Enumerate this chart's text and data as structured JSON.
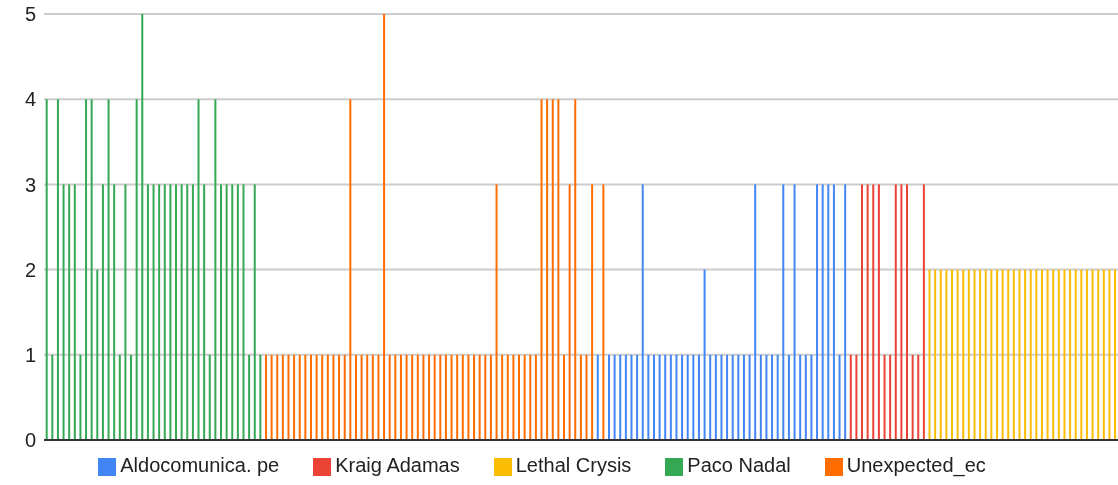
{
  "chart_data": {
    "type": "bar",
    "stacked": true,
    "grid": "y",
    "legend": "bottom",
    "ylim": [
      0,
      5
    ],
    "yticks": [
      0,
      1,
      2,
      3,
      4,
      5
    ],
    "categories": [
      null,
      null,
      null,
      null,
      null,
      null,
      null,
      null,
      null,
      null,
      null,
      null,
      null,
      null,
      null,
      null,
      null,
      null,
      null,
      null,
      null,
      null,
      null,
      null,
      null,
      null,
      null,
      null,
      null,
      null,
      null,
      null,
      null,
      null,
      null,
      null,
      null,
      null,
      null,
      null,
      null,
      null,
      null,
      null,
      null,
      null,
      null,
      null,
      null,
      null,
      null,
      null,
      null,
      null,
      null,
      null,
      null,
      null,
      null,
      null,
      null,
      null,
      null,
      null,
      null,
      null,
      null,
      null,
      null,
      null,
      null,
      null,
      null,
      null,
      null,
      null,
      null,
      null,
      null,
      null,
      null,
      null,
      null,
      null,
      null,
      null,
      null,
      null,
      null,
      null,
      null,
      null,
      null,
      null,
      null,
      null,
      null,
      null,
      null,
      null,
      null,
      null,
      null,
      null,
      null,
      null,
      null,
      null,
      null,
      null,
      null,
      null,
      null,
      null,
      null,
      null,
      null,
      null,
      null,
      null,
      null,
      null,
      null,
      null,
      null,
      null,
      null,
      null,
      null,
      null,
      null,
      null,
      null,
      null,
      null,
      null,
      null,
      null,
      null,
      null,
      null,
      null,
      null,
      null,
      null,
      null,
      null,
      null,
      null,
      null,
      null,
      null,
      null,
      null,
      null,
      null,
      null,
      null,
      null,
      null,
      null,
      null,
      null,
      null,
      null,
      null,
      null,
      null,
      null,
      null,
      null,
      null,
      null,
      null,
      null,
      null,
      null,
      null,
      null,
      null,
      null,
      null,
      null,
      null,
      null,
      null,
      null,
      null,
      null,
      null,
      null
    ],
    "series": [
      {
        "name": "Aldocomunica. pe",
        "color": "#4285f4",
        "values": [
          null,
          null,
          null,
          null,
          null,
          null,
          null,
          null,
          null,
          null,
          null,
          null,
          null,
          null,
          null,
          null,
          null,
          null,
          null,
          null,
          null,
          null,
          null,
          null,
          null,
          null,
          null,
          null,
          null,
          null,
          null,
          null,
          null,
          null,
          null,
          null,
          null,
          null,
          null,
          null,
          null,
          null,
          null,
          null,
          null,
          null,
          null,
          null,
          null,
          null,
          null,
          null,
          null,
          null,
          null,
          null,
          null,
          null,
          null,
          null,
          null,
          null,
          null,
          null,
          null,
          null,
          null,
          null,
          null,
          null,
          null,
          null,
          null,
          null,
          null,
          null,
          null,
          null,
          null,
          null,
          null,
          null,
          null,
          null,
          null,
          null,
          null,
          null,
          null,
          null,
          null,
          null,
          null,
          null,
          null,
          null,
          null,
          null,
          1,
          null,
          1,
          1,
          1,
          1,
          1,
          1,
          3,
          1,
          1,
          1,
          1,
          1,
          1,
          1,
          1,
          1,
          1,
          2,
          1,
          1,
          1,
          1,
          1,
          1,
          1,
          1,
          3,
          1,
          1,
          1,
          1,
          3,
          1,
          3,
          1,
          1,
          1,
          3,
          3,
          3,
          3,
          1,
          3,
          null,
          null,
          null,
          null,
          null,
          null,
          null,
          null,
          null,
          null,
          null,
          null,
          null,
          null,
          null,
          null,
          null,
          null,
          null,
          null,
          null,
          null,
          null,
          null,
          null,
          null,
          null,
          null,
          null,
          null,
          null,
          null,
          null,
          null,
          null,
          null,
          null,
          null,
          null,
          null,
          null,
          null,
          null,
          null,
          null,
          null,
          null,
          null
        ]
      },
      {
        "name": "Kraig Adamas",
        "color": "#ea4335",
        "values": [
          null,
          null,
          null,
          null,
          null,
          null,
          null,
          null,
          null,
          null,
          null,
          null,
          null,
          null,
          null,
          null,
          null,
          null,
          null,
          null,
          null,
          null,
          null,
          null,
          null,
          null,
          null,
          null,
          null,
          null,
          null,
          null,
          null,
          null,
          null,
          null,
          null,
          null,
          null,
          null,
          null,
          null,
          null,
          null,
          null,
          null,
          null,
          null,
          null,
          null,
          null,
          null,
          null,
          null,
          null,
          null,
          null,
          null,
          null,
          null,
          null,
          null,
          null,
          null,
          null,
          null,
          null,
          null,
          null,
          null,
          null,
          null,
          null,
          null,
          null,
          null,
          null,
          null,
          null,
          null,
          null,
          null,
          null,
          null,
          null,
          null,
          null,
          null,
          null,
          null,
          null,
          null,
          null,
          null,
          null,
          null,
          null,
          null,
          null,
          null,
          null,
          null,
          null,
          null,
          null,
          null,
          null,
          null,
          null,
          null,
          null,
          null,
          null,
          null,
          null,
          null,
          null,
          null,
          null,
          null,
          null,
          null,
          null,
          null,
          null,
          null,
          null,
          null,
          null,
          null,
          null,
          null,
          null,
          null,
          null,
          null,
          null,
          null,
          null,
          null,
          null,
          null,
          null,
          1,
          1,
          3,
          3,
          3,
          3,
          1,
          1,
          3,
          3,
          3,
          1,
          1,
          3,
          null,
          null,
          null,
          null,
          null,
          null,
          null,
          null,
          null,
          null,
          null,
          null,
          null,
          null,
          null,
          null,
          null,
          null,
          null,
          null,
          null,
          null,
          null,
          null,
          null,
          null,
          null,
          null,
          null,
          null,
          null,
          null,
          null,
          null
        ]
      },
      {
        "name": "Lethal Crysis",
        "color": "#fbbc04",
        "values": [
          null,
          null,
          null,
          null,
          null,
          null,
          null,
          null,
          null,
          null,
          null,
          null,
          null,
          null,
          null,
          null,
          null,
          null,
          null,
          null,
          null,
          null,
          null,
          null,
          null,
          null,
          null,
          null,
          null,
          null,
          null,
          null,
          null,
          null,
          null,
          null,
          null,
          null,
          null,
          null,
          null,
          null,
          null,
          null,
          null,
          null,
          null,
          null,
          null,
          null,
          null,
          null,
          null,
          null,
          null,
          null,
          null,
          null,
          null,
          null,
          null,
          null,
          null,
          null,
          null,
          null,
          null,
          null,
          null,
          null,
          null,
          null,
          null,
          null,
          null,
          null,
          null,
          null,
          null,
          null,
          null,
          null,
          null,
          null,
          null,
          null,
          null,
          null,
          null,
          null,
          null,
          null,
          null,
          null,
          null,
          null,
          null,
          null,
          null,
          null,
          null,
          null,
          null,
          null,
          null,
          null,
          null,
          null,
          null,
          null,
          null,
          null,
          null,
          null,
          null,
          null,
          null,
          null,
          null,
          null,
          null,
          null,
          null,
          null,
          null,
          null,
          null,
          null,
          null,
          null,
          null,
          null,
          null,
          null,
          null,
          null,
          null,
          null,
          null,
          null,
          null,
          null,
          null,
          null,
          null,
          null,
          null,
          null,
          null,
          null,
          null,
          null,
          null,
          null,
          null,
          null,
          null,
          2,
          2,
          2,
          2,
          2,
          2,
          2,
          2,
          2,
          2,
          2,
          2,
          2,
          2,
          2,
          2,
          2,
          2,
          2,
          2,
          2,
          2,
          2,
          2,
          2,
          2,
          2,
          2,
          2,
          2,
          2,
          2,
          2,
          2
        ]
      },
      {
        "name": "Paco Nadal",
        "color": "#34a853",
        "values": [
          4,
          1,
          4,
          3,
          3,
          3,
          1,
          4,
          4,
          2,
          3,
          4,
          3,
          1,
          3,
          1,
          4,
          5,
          3,
          3,
          3,
          3,
          3,
          3,
          3,
          3,
          3,
          4,
          3,
          1,
          4,
          3,
          3,
          3,
          3,
          3,
          1,
          3,
          1,
          null,
          null,
          null,
          null,
          null,
          null,
          null,
          null,
          null,
          null,
          null,
          null,
          null,
          null,
          null,
          null,
          null,
          null,
          null,
          null,
          null,
          null,
          null,
          null,
          null,
          null,
          null,
          null,
          null,
          null,
          null,
          null,
          null,
          null,
          null,
          null,
          null,
          null,
          null,
          null,
          null,
          null,
          null,
          null,
          null,
          null,
          null,
          null,
          null,
          null,
          null,
          null,
          null,
          null,
          null,
          null,
          null,
          null,
          null,
          null,
          null,
          null,
          null,
          null,
          null,
          null,
          null,
          null,
          null,
          null,
          null,
          null,
          null,
          null,
          null,
          null,
          null,
          null,
          null,
          null,
          null,
          null,
          null,
          null,
          null,
          null,
          null,
          null,
          null,
          null,
          null,
          null,
          null,
          null,
          null,
          null,
          null,
          null,
          null,
          null,
          null,
          null,
          null,
          null,
          null,
          null,
          null,
          null,
          null,
          null,
          null,
          null,
          null,
          null,
          null,
          null,
          null,
          null,
          null,
          null,
          null,
          null,
          null,
          null,
          null,
          null,
          null,
          null,
          null,
          null,
          null,
          null,
          null,
          null,
          null,
          null,
          null,
          null,
          null,
          null,
          null,
          null,
          null,
          null,
          null,
          null,
          null,
          null,
          null,
          null,
          null,
          null
        ]
      },
      {
        "name": "Unexpected_ec",
        "color": "#ff6d01",
        "values": [
          null,
          null,
          null,
          null,
          null,
          null,
          null,
          null,
          null,
          null,
          null,
          null,
          null,
          null,
          null,
          null,
          null,
          null,
          null,
          null,
          null,
          null,
          null,
          null,
          null,
          null,
          null,
          null,
          null,
          null,
          null,
          null,
          null,
          null,
          null,
          null,
          null,
          null,
          null,
          1,
          1,
          1,
          1,
          1,
          1,
          1,
          1,
          1,
          1,
          1,
          1,
          1,
          1,
          1,
          4,
          1,
          1,
          1,
          1,
          1,
          5,
          1,
          1,
          1,
          1,
          1,
          1,
          1,
          1,
          1,
          1,
          1,
          1,
          1,
          1,
          1,
          1,
          1,
          1,
          1,
          3,
          1,
          1,
          1,
          1,
          1,
          1,
          1,
          4,
          4,
          4,
          4,
          1,
          3,
          4,
          1,
          1,
          3,
          null,
          3,
          null,
          null,
          null,
          null,
          null,
          null,
          null,
          null,
          null,
          null,
          null,
          null,
          null,
          null,
          null,
          null,
          null,
          null,
          null,
          null,
          null,
          null,
          null,
          null,
          null,
          null,
          null,
          null,
          null,
          null,
          null,
          null,
          null,
          null,
          null,
          null,
          null,
          null,
          null,
          null,
          null,
          null,
          null,
          null,
          null,
          null,
          null,
          null,
          null,
          null,
          null,
          null,
          null,
          null,
          null,
          null,
          null,
          null,
          null,
          null,
          null,
          null,
          null,
          null,
          null,
          null,
          null,
          null,
          null,
          null,
          null,
          null,
          null,
          null,
          null,
          null,
          null,
          null,
          null,
          null,
          null,
          null,
          null,
          null,
          null,
          null,
          null,
          null,
          null,
          null,
          null
        ]
      }
    ]
  }
}
